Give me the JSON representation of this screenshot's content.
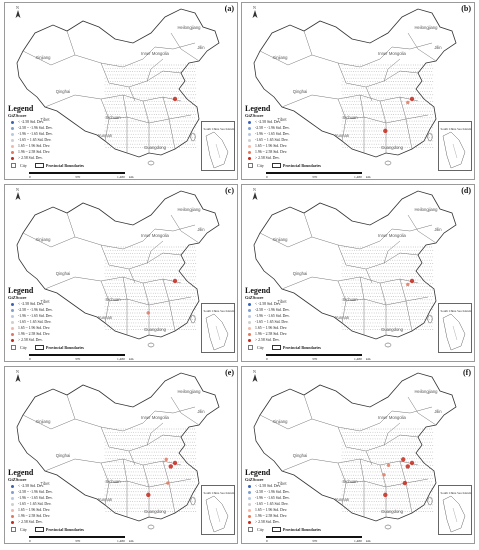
{
  "panels": [
    {
      "letter": "(a)"
    },
    {
      "letter": "(b)"
    },
    {
      "letter": "(c)"
    },
    {
      "letter": "(d)"
    },
    {
      "letter": "(e)"
    },
    {
      "letter": "(f)"
    }
  ],
  "north_symbol": "N",
  "legend": {
    "title": "Legend",
    "subtitle": "GiZScore",
    "classes": [
      {
        "label": "< -2.58 Std. Dev.",
        "color": "#3a63b8"
      },
      {
        "label": "-2.58 ~ -1.96 Std. Dev.",
        "color": "#7e9fd0"
      },
      {
        "label": "-1.96 ~ -1.65 Std. Dev.",
        "color": "#b9c8e4"
      },
      {
        "label": "-1.65 ~ 1.65 Std. Dev.",
        "color": "#cfcfcf"
      },
      {
        "label": "1.65 ~ 1.96 Std. Dev.",
        "color": "#f2b8a7"
      },
      {
        "label": "1.96 ~ 2.58 Std. Dev.",
        "color": "#e2785e"
      },
      {
        "label": "> 2.58 Std. Dev.",
        "color": "#c5281c"
      }
    ],
    "city_label": "City",
    "province_label": "Provincial Boundaries"
  },
  "scale": {
    "labels": [
      "0",
      "370",
      "1,480"
    ],
    "unit": "km"
  },
  "inset_title": "South China Sea Islands",
  "province_labels": [
    "Heilongjiang",
    "Jilin",
    "Inner Mongolia",
    "Xinjiang",
    "Qinghai",
    "Tibet",
    "Sichuan",
    "Yunnan",
    "Guangdong"
  ],
  "hotspots": {
    "a": [
      {
        "lon": 121.5,
        "lat": 31.2,
        "level": 6
      }
    ],
    "b": [
      {
        "lon": 121.5,
        "lat": 31.2,
        "level": 6
      },
      {
        "lon": 120.2,
        "lat": 30.3,
        "level": 5
      },
      {
        "lon": 113.3,
        "lat": 23.1,
        "level": 6
      }
    ],
    "c": [
      {
        "lon": 121.5,
        "lat": 31.2,
        "level": 6
      },
      {
        "lon": 113.3,
        "lat": 23.1,
        "level": 5
      }
    ],
    "d": [
      {
        "lon": 121.5,
        "lat": 31.2,
        "level": 6
      },
      {
        "lon": 120.2,
        "lat": 30.3,
        "level": 5
      }
    ],
    "e": [
      {
        "lon": 121.5,
        "lat": 31.2,
        "level": 6
      },
      {
        "lon": 120.2,
        "lat": 30.3,
        "level": 6
      },
      {
        "lon": 118.8,
        "lat": 32.1,
        "level": 5
      },
      {
        "lon": 119.3,
        "lat": 26.1,
        "level": 5
      },
      {
        "lon": 113.3,
        "lat": 23.1,
        "level": 6
      }
    ],
    "f": [
      {
        "lon": 121.5,
        "lat": 31.2,
        "level": 6
      },
      {
        "lon": 120.2,
        "lat": 30.3,
        "level": 6
      },
      {
        "lon": 118.8,
        "lat": 32.1,
        "level": 6
      },
      {
        "lon": 119.3,
        "lat": 26.1,
        "level": 6
      },
      {
        "lon": 113.3,
        "lat": 23.1,
        "level": 6
      },
      {
        "lon": 114.3,
        "lat": 30.6,
        "level": 5
      },
      {
        "lon": 112.9,
        "lat": 28.2,
        "level": 5
      }
    ]
  }
}
